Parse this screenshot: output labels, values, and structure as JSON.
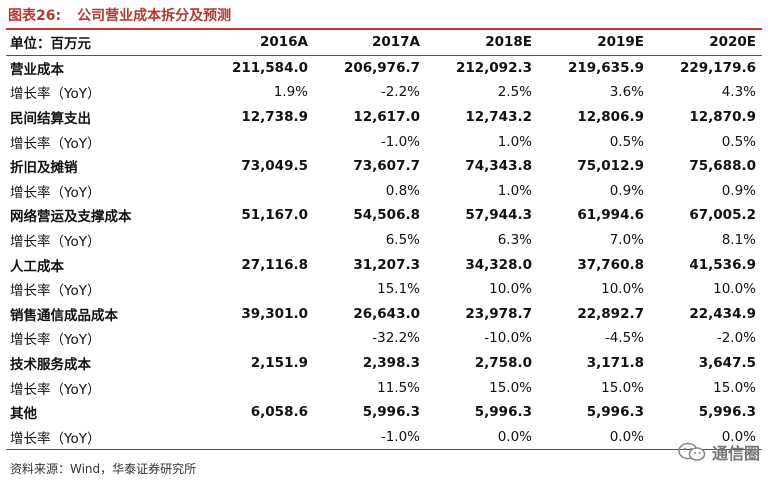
{
  "title": {
    "label": "图表26:",
    "text": "公司营业成本拆分及预测"
  },
  "header": [
    "单位：百万元",
    "2016A",
    "2017A",
    "2018E",
    "2019E",
    "2020E"
  ],
  "rows": [
    {
      "type": "main",
      "cells": [
        "营业成本",
        "211,584.0",
        "206,976.7",
        "212,092.3",
        "219,635.9",
        "229,179.6"
      ]
    },
    {
      "type": "sub",
      "cells": [
        "增长率（YoY）",
        "1.9%",
        "-2.2%",
        "2.5%",
        "3.6%",
        "4.3%"
      ]
    },
    {
      "type": "main",
      "cells": [
        "民间结算支出",
        "12,738.9",
        "12,617.0",
        "12,743.2",
        "12,806.9",
        "12,870.9"
      ]
    },
    {
      "type": "sub",
      "cells": [
        "增长率（YoY）",
        "",
        "-1.0%",
        "1.0%",
        "0.5%",
        "0.5%"
      ]
    },
    {
      "type": "main",
      "cells": [
        "折旧及摊销",
        "73,049.5",
        "73,607.7",
        "74,343.8",
        "75,012.9",
        "75,688.0"
      ]
    },
    {
      "type": "sub",
      "cells": [
        "增长率（YoY）",
        "",
        "0.8%",
        "1.0%",
        "0.9%",
        "0.9%"
      ]
    },
    {
      "type": "main",
      "cells": [
        "网络营运及支撑成本",
        "51,167.0",
        "54,506.8",
        "57,944.3",
        "61,994.6",
        "67,005.2"
      ]
    },
    {
      "type": "sub",
      "cells": [
        "增长率（YoY）",
        "",
        "6.5%",
        "6.3%",
        "7.0%",
        "8.1%"
      ]
    },
    {
      "type": "main",
      "cells": [
        "人工成本",
        "27,116.8",
        "31,207.3",
        "34,328.0",
        "37,760.8",
        "41,536.9"
      ]
    },
    {
      "type": "sub",
      "cells": [
        "增长率（YoY）",
        "",
        "15.1%",
        "10.0%",
        "10.0%",
        "10.0%"
      ]
    },
    {
      "type": "main",
      "cells": [
        "销售通信成品成本",
        "39,301.0",
        "26,643.0",
        "23,978.7",
        "22,892.7",
        "22,434.9"
      ]
    },
    {
      "type": "sub",
      "cells": [
        "增长率（YoY）",
        "",
        "-32.2%",
        "-10.0%",
        "-4.5%",
        "-2.0%"
      ]
    },
    {
      "type": "main",
      "cells": [
        "技术服务成本",
        "2,151.9",
        "2,398.3",
        "2,758.0",
        "3,171.8",
        "3,647.5"
      ]
    },
    {
      "type": "sub",
      "cells": [
        "增长率（YoY）",
        "",
        "11.5%",
        "15.0%",
        "15.0%",
        "15.0%"
      ]
    },
    {
      "type": "main",
      "cells": [
        "其他",
        "6,058.6",
        "5,996.3",
        "5,996.3",
        "5,996.3",
        "5,996.3"
      ]
    },
    {
      "type": "sub",
      "cells": [
        "增长率（YoY）",
        "",
        "-1.0%",
        "0.0%",
        "0.0%",
        "0.0%"
      ]
    }
  ],
  "source": "资料来源：Wind，华泰证券研究所",
  "watermark": {
    "text": "通信圈",
    "icon": "wechat-icon"
  }
}
